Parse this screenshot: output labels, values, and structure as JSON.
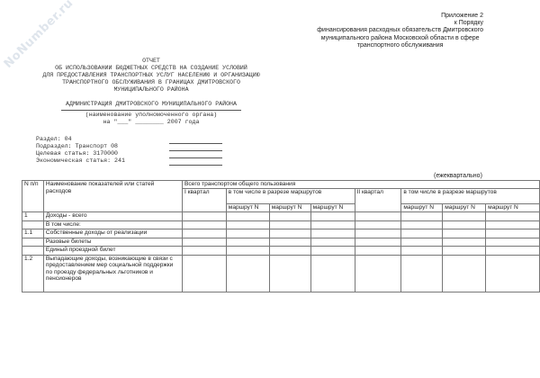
{
  "watermark": "NoNumber.ru",
  "appendix": [
    "Приложение 2",
    "к Порядку",
    "финансирования расходных обязательств Дмитровского",
    "муниципального района Московской области в сфере",
    "транспортного обслуживания"
  ],
  "title": [
    "ОТЧЕТ",
    "ОБ ИСПОЛЬЗОВАНИИ БЮДЖЕТНЫХ СРЕДСТВ НА СОЗДАНИЕ УСЛОВИЙ",
    "ДЛЯ ПРЕДОСТАВЛЕНИЯ ТРАНСПОРТНЫХ УСЛУГ НАСЕЛЕНИЮ И ОРГАНИЗАЦИЮ",
    "ТРАНСПОРТНОГО ОБСЛУЖИВАНИЯ В ГРАНИЦАХ ДМИТРОВСКОГО",
    "МУНИЦИПАЛЬНОГО РАЙОНА"
  ],
  "organ": "АДМИНИСТРАЦИЯ ДМИТРОВСКОГО МУНИЦИПАЛЬНОГО РАЙОНА",
  "organ_caption": "(наименование уполномоченного органа)",
  "date_line": "на \"___\" ________ 2007 года",
  "sections": [
    "Раздел: 04",
    "Подраздел: Транспорт 08",
    "Целевая статья: 3170000",
    "Экономическая статья: 241"
  ],
  "period": "(ежеквартально)",
  "table": {
    "h_num": "N п/п",
    "h_name": "Наименование показателей или статей расходов",
    "h_total": "Всего транспортом общего пользования",
    "q1": "I квартал",
    "q2": "II квартал",
    "incl": "в том числе в разрезе маршрутов",
    "route": "маршрут N",
    "rows": [
      {
        "num": "1",
        "name": "Доходы - всего"
      },
      {
        "num": "",
        "name": "В том числе:"
      },
      {
        "num": "1.1",
        "name": "Собственные доходы от реализации"
      },
      {
        "num": "",
        "name": "Разовые билеты"
      },
      {
        "num": "",
        "name": "Единый проездной билет"
      },
      {
        "num": "1.2",
        "name": "Выпадающие доходы, возникающие в связи с предоставлением мер социальной поддержки по проезду федеральных льготников и пенсионеров"
      }
    ]
  }
}
